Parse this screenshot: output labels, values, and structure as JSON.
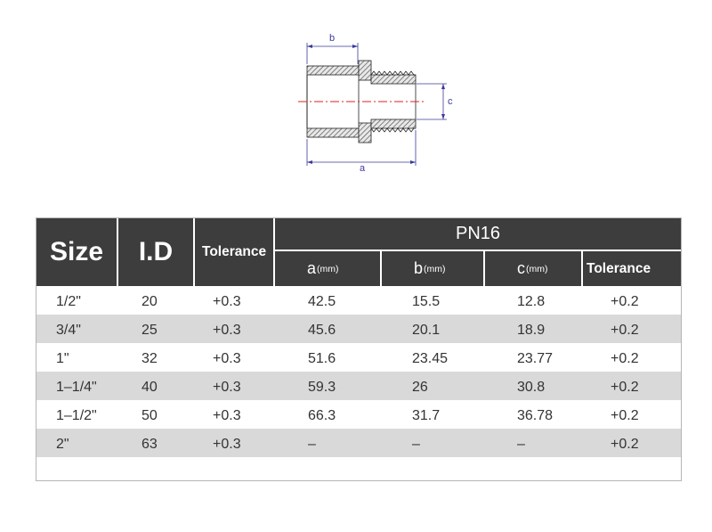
{
  "diagram": {
    "label_a": "a",
    "label_b": "b",
    "label_c": "c"
  },
  "table": {
    "header": {
      "size": "Size",
      "id": "I.D",
      "tolerance": "Tolerance",
      "group": "PN16",
      "a": "a",
      "a_unit": "(mm)",
      "b": "b",
      "b_unit": "(mm)",
      "c": "c",
      "c_unit": "(mm)",
      "tolerance2": "Tolerance"
    },
    "rows": [
      {
        "size": "1/2\"",
        "id": "20",
        "tol": "+0.3",
        "a": "42.5",
        "b": "15.5",
        "c": "12.8",
        "tol2": "+0.2"
      },
      {
        "size": "3/4\"",
        "id": "25",
        "tol": "+0.3",
        "a": "45.6",
        "b": "20.1",
        "c": "18.9",
        "tol2": "+0.2"
      },
      {
        "size": "1\"",
        "id": "32",
        "tol": "+0.3",
        "a": "51.6",
        "b": "23.45",
        "c": "23.77",
        "tol2": "+0.2"
      },
      {
        "size": "1–1/4\"",
        "id": "40",
        "tol": "+0.3",
        "a": "59.3",
        "b": "26",
        "c": "30.8",
        "tol2": "+0.2"
      },
      {
        "size": "1–1/2\"",
        "id": "50",
        "tol": "+0.3",
        "a": "66.3",
        "b": "31.7",
        "c": "36.78",
        "tol2": "+0.2"
      },
      {
        "size": "2\"",
        "id": "63",
        "tol": "+0.3",
        "a": "–",
        "b": "–",
        "c": "–",
        "tol2": "+0.2"
      }
    ]
  }
}
